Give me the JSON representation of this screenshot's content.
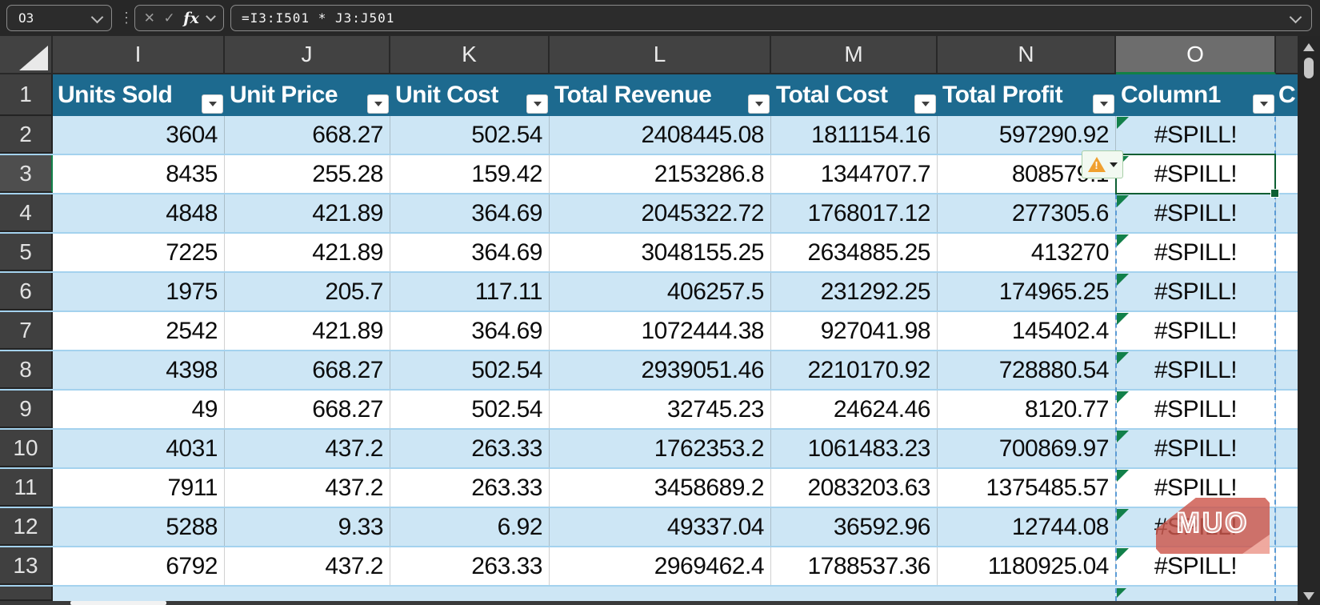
{
  "topbar": {
    "name_box_value": "O3",
    "formula": "=I3:I501 * J3:J501",
    "fx_label": "fx",
    "icons": {
      "cancel": "✕",
      "check": "✓",
      "more": "⋮"
    }
  },
  "columns": {
    "letters": [
      "I",
      "J",
      "K",
      "L",
      "M",
      "N",
      "O"
    ],
    "selected_letter": "O"
  },
  "table": {
    "header_row_num": "1",
    "headers": [
      "Units Sold",
      "Unit Price",
      "Unit Cost",
      "Total Revenue",
      "Total Cost",
      "Total Profit",
      "Column1"
    ],
    "truncated_next_header": "C",
    "rows": [
      {
        "num": "2",
        "cells": [
          "3604",
          "668.27",
          "502.54",
          "2408445.08",
          "1811154.16",
          "597290.92",
          "#SPILL!"
        ]
      },
      {
        "num": "3",
        "cells": [
          "8435",
          "255.28",
          "159.42",
          "2153286.8",
          "1344707.7",
          "808579.1",
          "#SPILL!"
        ]
      },
      {
        "num": "4",
        "cells": [
          "4848",
          "421.89",
          "364.69",
          "2045322.72",
          "1768017.12",
          "277305.6",
          "#SPILL!"
        ]
      },
      {
        "num": "5",
        "cells": [
          "7225",
          "421.89",
          "364.69",
          "3048155.25",
          "2634885.25",
          "413270",
          "#SPILL!"
        ]
      },
      {
        "num": "6",
        "cells": [
          "1975",
          "205.7",
          "117.11",
          "406257.5",
          "231292.25",
          "174965.25",
          "#SPILL!"
        ]
      },
      {
        "num": "7",
        "cells": [
          "2542",
          "421.89",
          "364.69",
          "1072444.38",
          "927041.98",
          "145402.4",
          "#SPILL!"
        ]
      },
      {
        "num": "8",
        "cells": [
          "4398",
          "668.27",
          "502.54",
          "2939051.46",
          "2210170.92",
          "728880.54",
          "#SPILL!"
        ]
      },
      {
        "num": "9",
        "cells": [
          "49",
          "668.27",
          "502.54",
          "32745.23",
          "24624.46",
          "8120.77",
          "#SPILL!"
        ]
      },
      {
        "num": "10",
        "cells": [
          "4031",
          "437.2",
          "263.33",
          "1762353.2",
          "1061483.23",
          "700869.97",
          "#SPILL!"
        ]
      },
      {
        "num": "11",
        "cells": [
          "7911",
          "437.2",
          "263.33",
          "3458689.2",
          "2083203.63",
          "1375485.57",
          "#SPILL!"
        ]
      },
      {
        "num": "12",
        "cells": [
          "5288",
          "9.33",
          "6.92",
          "49337.04",
          "36592.96",
          "12744.08",
          "#SPILL!"
        ]
      },
      {
        "num": "13",
        "cells": [
          "6792",
          "437.2",
          "263.33",
          "2969462.4",
          "1788537.36",
          "1180925.04",
          "#SPILL!"
        ]
      }
    ],
    "active_cell": "O3",
    "error_value": "#SPILL!"
  },
  "watermark": {
    "text": "MUO"
  },
  "colors": {
    "header_teal": "#1d6a8f",
    "band_blue": "#cde6f5",
    "selection_green": "#0d5f33",
    "error_triangle_green": "#12804a",
    "spill_dash_blue": "#5b9bd5",
    "watermark_red": "#cd574c",
    "warning_orange": "#f0a030"
  }
}
